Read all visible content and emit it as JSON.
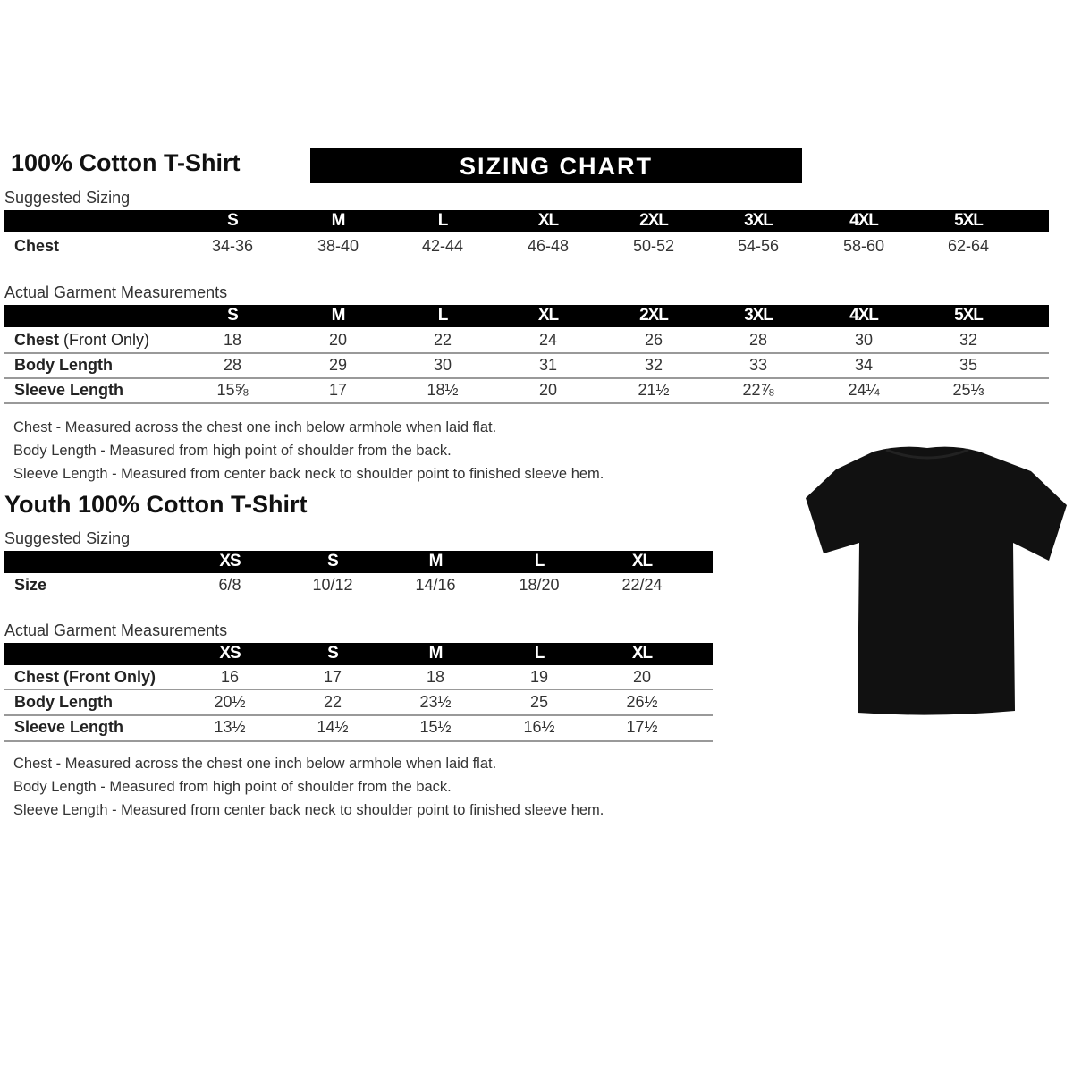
{
  "adult": {
    "title": "100% Cotton T-Shirt",
    "banner": "SIZING CHART",
    "suggested_label": "Suggested Sizing",
    "sizes": [
      "S",
      "M",
      "L",
      "XL",
      "2XL",
      "3XL",
      "4XL",
      "5XL"
    ],
    "suggested_rows": [
      {
        "label": "Chest",
        "label_light": "",
        "values": [
          "34-36",
          "38-40",
          "42-44",
          "46-48",
          "50-52",
          "54-56",
          "58-60",
          "62-64"
        ]
      }
    ],
    "actual_label": "Actual Garment Measurements",
    "actual_rows": [
      {
        "label": "Chest",
        "label_light": " (Front Only)",
        "values": [
          "18",
          "20",
          "22",
          "24",
          "26",
          "28",
          "30",
          "32"
        ]
      },
      {
        "label": "Body Length",
        "label_light": "",
        "values": [
          "28",
          "29",
          "30",
          "31",
          "32",
          "33",
          "34",
          "35"
        ]
      },
      {
        "label": "Sleeve Length",
        "label_light": "",
        "values": [
          "15⅝",
          "17",
          "18½",
          "20",
          "21½",
          "22⅞",
          "24¼",
          "25⅓"
        ]
      }
    ],
    "notes": [
      "Chest - Measured across the chest one inch below armhole when laid flat.",
      "Body Length - Measured from high point of shoulder from the back.",
      "Sleeve Length - Measured from center back neck to shoulder point to finished sleeve hem."
    ]
  },
  "youth": {
    "title": "Youth 100% Cotton T-Shirt",
    "suggested_label": "Suggested Sizing",
    "sizes": [
      "XS",
      "S",
      "M",
      "L",
      "XL"
    ],
    "suggested_rows": [
      {
        "label": "Size",
        "label_light": "",
        "values": [
          "6/8",
          "10/12",
          "14/16",
          "18/20",
          "22/24"
        ]
      }
    ],
    "actual_label": "Actual Garment Measurements",
    "actual_rows": [
      {
        "label": "Chest (Front Only)",
        "label_light": "",
        "values": [
          "16",
          "17",
          "18",
          "19",
          "20"
        ]
      },
      {
        "label": "Body Length",
        "label_light": "",
        "values": [
          "20½",
          "22",
          "23½",
          "25",
          "26½"
        ]
      },
      {
        "label": "Sleeve Length",
        "label_light": "",
        "values": [
          "13½",
          "14½",
          "15½",
          "16½",
          "17½"
        ]
      }
    ],
    "notes": [
      "Chest - Measured across the chest one inch below armhole when laid flat.",
      "Body Length - Measured from high point of shoulder from the back.",
      "Sleeve Length - Measured from center back neck to shoulder point to finished sleeve hem."
    ]
  },
  "tshirt_color": "#111111"
}
